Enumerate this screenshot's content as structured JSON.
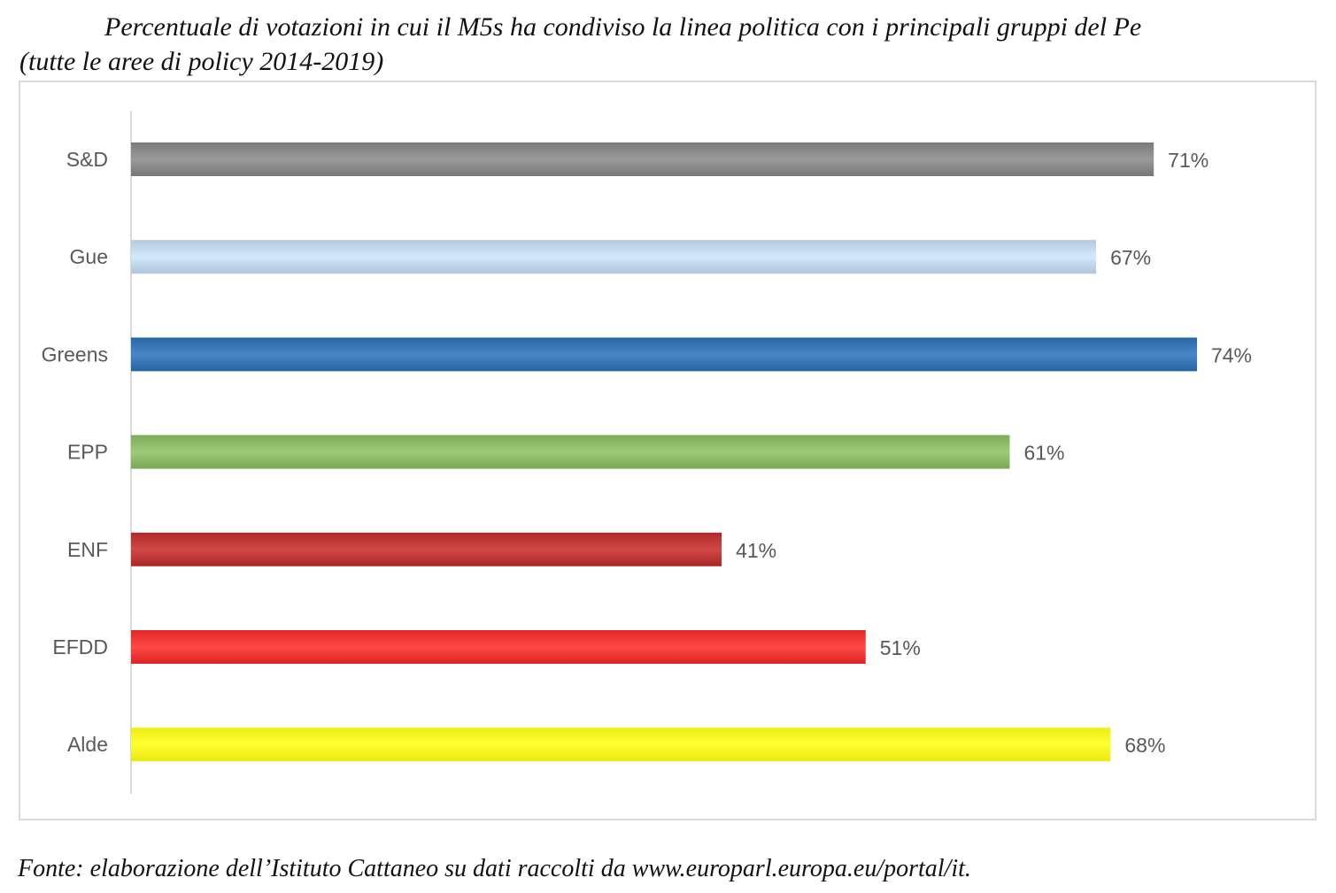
{
  "title_lines": [
    "Percentuale di votazioni in cui il M5s ha condiviso la linea politica con i principali gruppi del Pe",
    "(tutte le aree di policy 2014-2019)"
  ],
  "source": "Fonte: elaborazione dell’Istituto Cattaneo su dati raccolti da www.europarl.europa.eu/portal/it.",
  "chart_data": {
    "type": "bar",
    "orientation": "horizontal",
    "categories": [
      "S&D",
      "Gue",
      "Greens",
      "EPP",
      "ENF",
      "EFDD",
      "Alde"
    ],
    "values": [
      71,
      67,
      74,
      61,
      41,
      51,
      68
    ],
    "data_labels": [
      "71%",
      "67%",
      "74%",
      "61%",
      "41%",
      "51%",
      "68%"
    ],
    "bar_colors": [
      "#8c8c8c",
      "#c5daef",
      "#3a78b8",
      "#8fbd6b",
      "#c23b3b",
      "#f23a3a",
      "#ffff26"
    ],
    "unit": "%",
    "xlim": [
      0,
      100
    ],
    "grid": false,
    "legend": "none"
  }
}
